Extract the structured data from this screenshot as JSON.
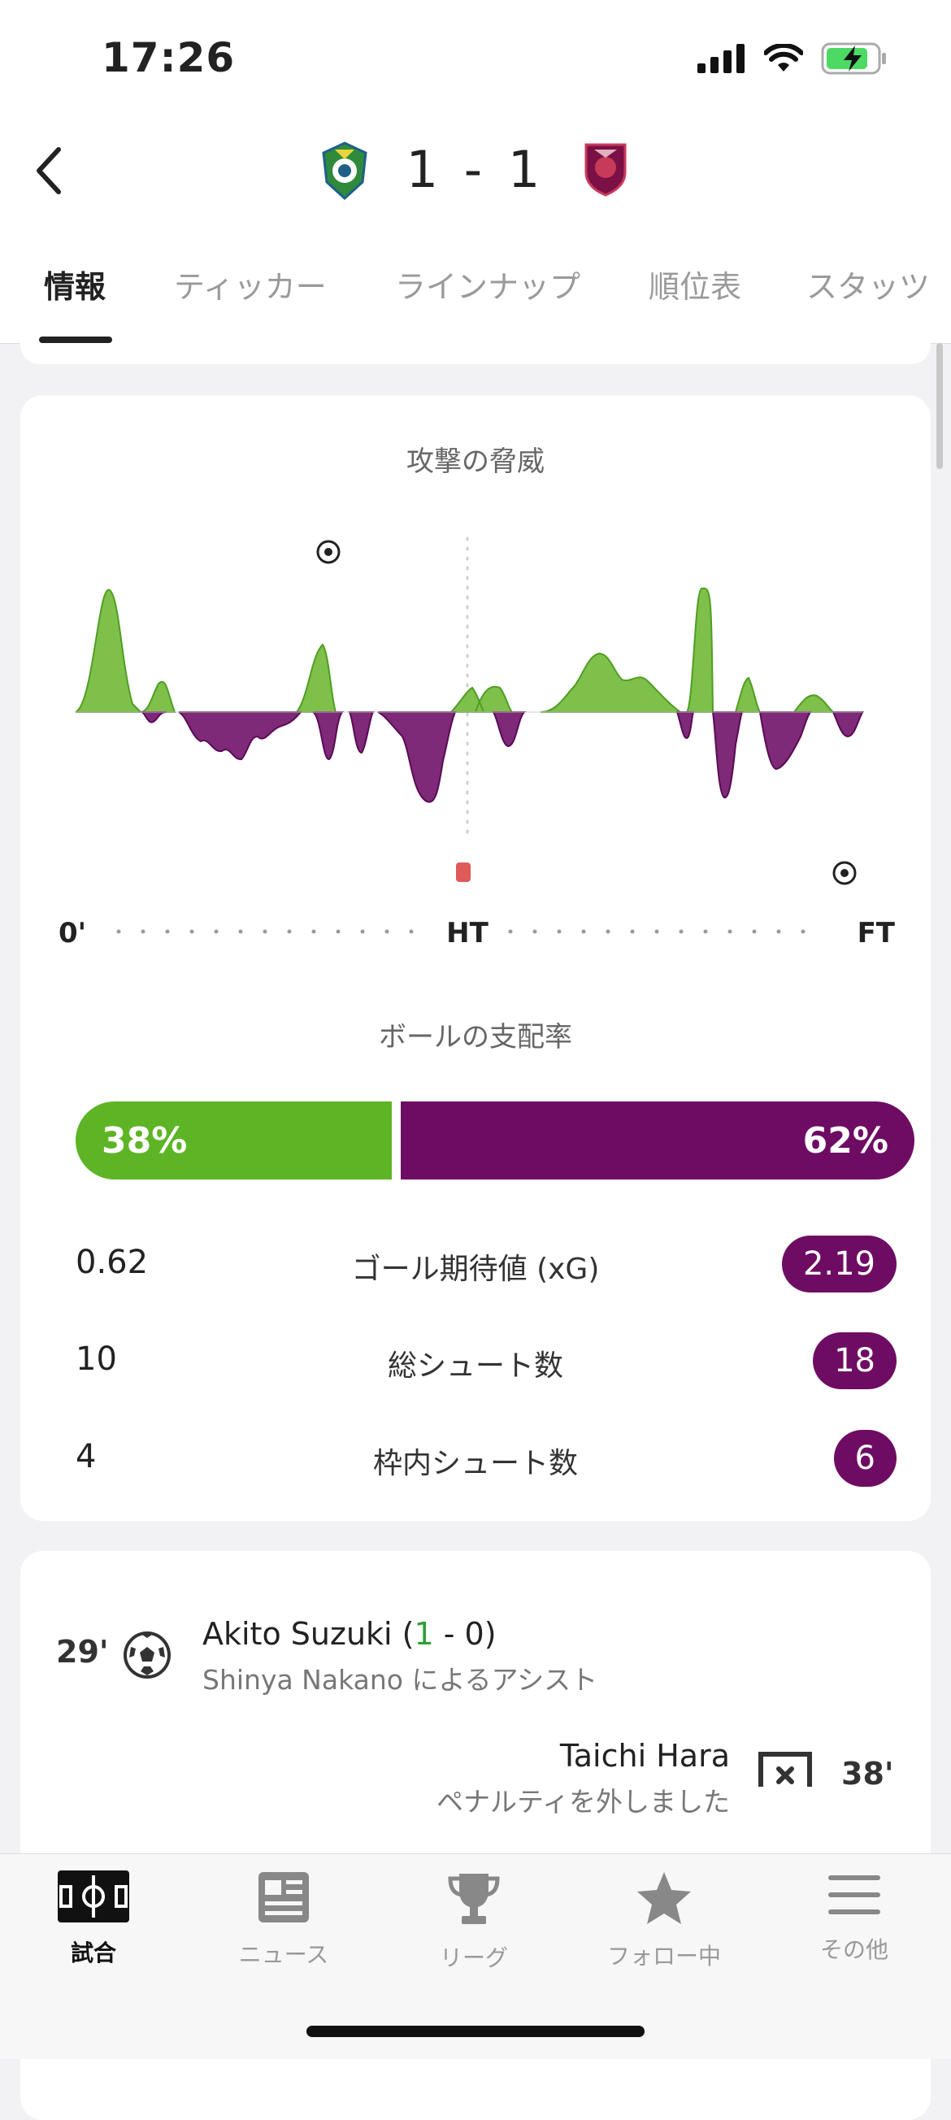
{
  "status": {
    "time": "17:26"
  },
  "match": {
    "score": "1 - 1",
    "home_crest": "shonan-bellmare-crest",
    "away_crest": "kyoto-sanga-crest"
  },
  "tabs": [
    "情報",
    "ティッカー",
    "ラインナップ",
    "順位表",
    "スタッツ"
  ],
  "momentum": {
    "title": "攻撃の脅威",
    "labels": {
      "start": "0'",
      "half": "HT",
      "end": "FT"
    },
    "colors": {
      "home": "#7ec04a",
      "away": "#6e0c64"
    }
  },
  "possession": {
    "title": "ボールの支配率",
    "home": "38%",
    "away": "62%",
    "home_value": 38,
    "away_value": 62,
    "colors": {
      "home": "#5db526",
      "away": "#6e0c64"
    }
  },
  "stats": [
    {
      "home": "0.62",
      "label": "ゴール期待値 (xG)",
      "away": "2.19"
    },
    {
      "home": "10",
      "label": "総シュート数",
      "away": "18"
    },
    {
      "home": "4",
      "label": "枠内シュート数",
      "away": "6"
    }
  ],
  "events": [
    {
      "minute": "29'",
      "player": "Akito Suzuki",
      "score_open": " (",
      "score_home": "1",
      "score_rest": " - 0)",
      "sub": "Shinya Nakano によるアシスト",
      "icon": "soccer-ball-icon"
    },
    {
      "minute": "38'",
      "player": "Taichi Hara",
      "sub": "ペナルティを外しました",
      "icon": "missed-penalty-icon"
    }
  ],
  "bottom_nav": [
    {
      "label": "試合",
      "icon": "pitch-icon",
      "active": true
    },
    {
      "label": "ニュース",
      "icon": "news-icon",
      "active": false
    },
    {
      "label": "リーグ",
      "icon": "trophy-icon",
      "active": false
    },
    {
      "label": "フォロー中",
      "icon": "star-icon",
      "active": false
    },
    {
      "label": "その他",
      "icon": "menu-icon",
      "active": false
    }
  ]
}
